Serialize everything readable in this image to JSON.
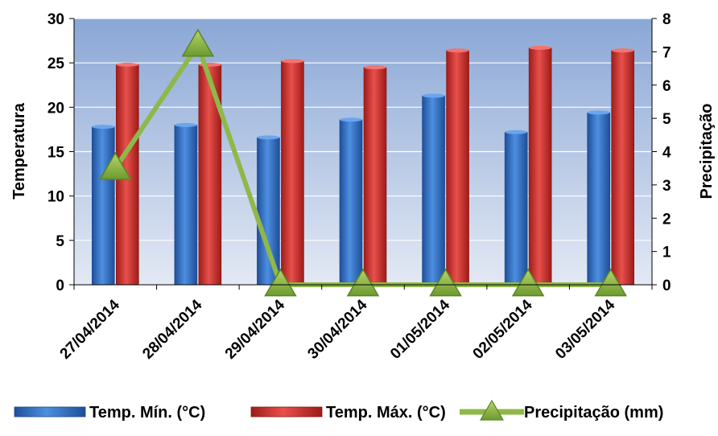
{
  "chart_data": {
    "type": "bar",
    "categories": [
      "27/04/2014",
      "28/04/2014",
      "29/04/2014",
      "30/04/2014",
      "01/05/2014",
      "02/05/2014",
      "03/05/2014"
    ],
    "series": [
      {
        "name": "Temp. Mín. (°C)",
        "kind": "bar",
        "axis": "left",
        "color": "#2e6fc0",
        "values": [
          17.8,
          18.0,
          16.6,
          18.6,
          21.3,
          17.2,
          19.4
        ]
      },
      {
        "name": "Temp. Máx. (°C)",
        "kind": "bar",
        "axis": "left",
        "color": "#c8302c",
        "values": [
          24.8,
          24.8,
          25.2,
          24.5,
          26.4,
          26.7,
          26.4
        ]
      },
      {
        "name": "Precipitação (mm)",
        "kind": "line",
        "axis": "right",
        "color": "#8fb84a",
        "marker": "triangle",
        "values": [
          3.5,
          7.2,
          0,
          0,
          0,
          0,
          0
        ]
      }
    ],
    "ylabel": "Temperatura",
    "y2label": "Precipitação",
    "xlabel": "",
    "ylim": [
      0,
      30
    ],
    "y2lim": [
      0,
      8
    ],
    "yticks": [
      "0",
      "5",
      "10",
      "15",
      "20",
      "25",
      "30"
    ],
    "y2ticks": [
      "0",
      "1",
      "2",
      "3",
      "4",
      "5",
      "6",
      "7",
      "8"
    ],
    "legend_position": "bottom",
    "grid": true
  }
}
